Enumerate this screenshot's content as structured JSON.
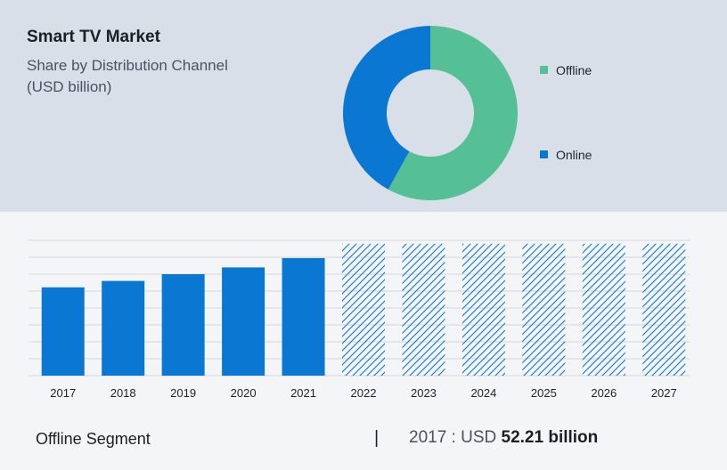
{
  "header": {
    "title": "Smart TV Market",
    "subtitle_line1": "Share by Distribution Channel",
    "subtitle_line2": "(USD billion)"
  },
  "colors": {
    "offline": "#55c095",
    "online": "#0a78d2",
    "bar": "#0a78d2",
    "hatch": "#0a78d2",
    "grid": "#d4d7dc"
  },
  "footer": {
    "segment": "Offline Segment",
    "divider": "|",
    "year_prefix": "2017 : USD",
    "value": "52.21 billion"
  },
  "chart_data": [
    {
      "type": "pie",
      "categories": [
        "Offline",
        "Online"
      ],
      "values": [
        58,
        42
      ],
      "legend_position": "right"
    },
    {
      "type": "bar",
      "categories": [
        "2017",
        "2018",
        "2019",
        "2020",
        "2021",
        "2022",
        "2023",
        "2024",
        "2025",
        "2026",
        "2027"
      ],
      "values": [
        52.21,
        56.0,
        60.0,
        64.0,
        69.5,
        78.0,
        78.0,
        78.0,
        78.0,
        78.0,
        78.0
      ],
      "forecast": [
        false,
        false,
        false,
        false,
        false,
        true,
        true,
        true,
        true,
        true,
        true
      ],
      "ylim": [
        0,
        80
      ],
      "grid": true
    }
  ]
}
